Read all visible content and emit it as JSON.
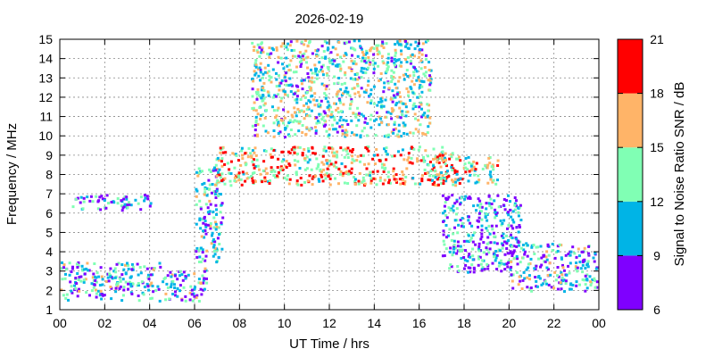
{
  "chart_data": {
    "type": "heatmap",
    "title": "2026-02-19",
    "xlabel": "UT Time / hrs",
    "ylabel": "Frequency / MHz",
    "colorbar_label": "Signal to Noise Ratio SNR / dB",
    "xlim": [
      0,
      24
    ],
    "ylim": [
      1,
      15
    ],
    "x_ticks": [
      "00",
      "02",
      "04",
      "06",
      "08",
      "10",
      "12",
      "14",
      "16",
      "18",
      "20",
      "22",
      "00"
    ],
    "y_ticks": [
      "1",
      "2",
      "3",
      "4",
      "5",
      "6",
      "7",
      "8",
      "9",
      "10",
      "11",
      "12",
      "13",
      "14",
      "15"
    ],
    "grid": true,
    "colorbar": {
      "ticks": [
        "6",
        "9",
        "12",
        "15",
        "18",
        "21"
      ],
      "range": [
        6,
        21
      ],
      "bands": [
        {
          "from": 6,
          "to": 9,
          "color": "#7f00ff"
        },
        {
          "from": 9,
          "to": 12,
          "color": "#00b4e6"
        },
        {
          "from": 12,
          "to": 15,
          "color": "#80ffb4"
        },
        {
          "from": 15,
          "to": 18,
          "color": "#ffb468"
        },
        {
          "from": 18,
          "to": 21,
          "color": "#ff0000"
        }
      ]
    },
    "snr_regions": [
      {
        "t": [
          0,
          4.5
        ],
        "f": [
          1.5,
          3.5
        ],
        "snr": 11
      },
      {
        "t": [
          0.5,
          4
        ],
        "f": [
          6.2,
          7.0
        ],
        "snr": 10
      },
      {
        "t": [
          4.5,
          6.5
        ],
        "f": [
          1.5,
          3.2
        ],
        "snr": 11
      },
      {
        "t": [
          6,
          7.2
        ],
        "f": [
          3.5,
          8.5
        ],
        "snr": 11
      },
      {
        "t": [
          6.8,
          17.5
        ],
        "f": [
          7.5,
          9.5
        ],
        "snr": 16
      },
      {
        "t": [
          8.5,
          16.5
        ],
        "f": [
          10,
          15
        ],
        "snr": 13
      },
      {
        "t": [
          16.5,
          19.5
        ],
        "f": [
          7.5,
          9.0
        ],
        "snr": 15
      },
      {
        "t": [
          17,
          20.5
        ],
        "f": [
          3,
          7
        ],
        "snr": 10
      },
      {
        "t": [
          20,
          24
        ],
        "f": [
          2,
          4.5
        ],
        "snr": 11
      }
    ]
  }
}
